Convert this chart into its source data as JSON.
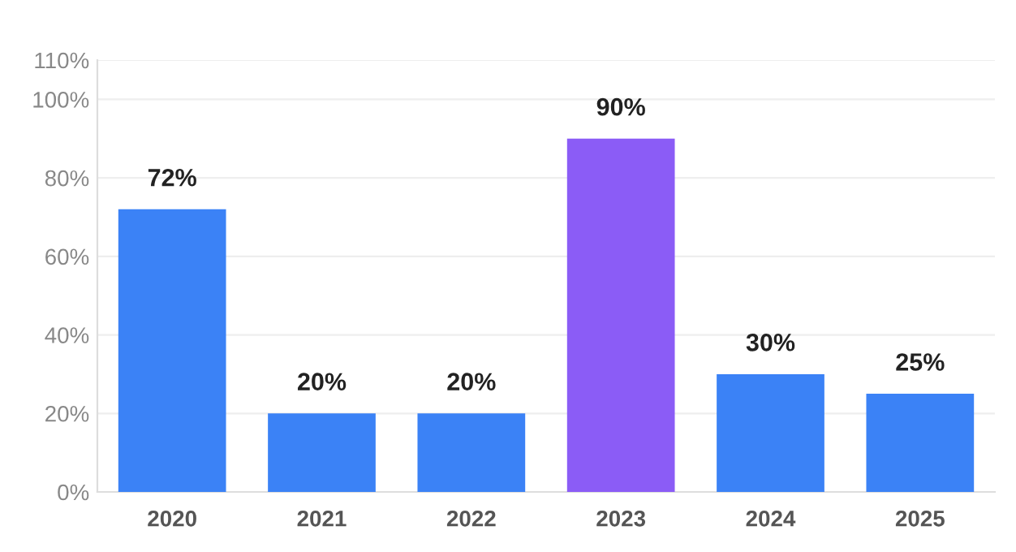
{
  "chart_data": {
    "type": "bar",
    "categories": [
      "2020",
      "2021",
      "2022",
      "2023",
      "2024",
      "2025"
    ],
    "values": [
      72,
      20,
      20,
      90,
      30,
      25
    ],
    "colors": [
      "#3b82f6",
      "#3b82f6",
      "#3b82f6",
      "#8b5cf6",
      "#3b82f6",
      "#3b82f6"
    ],
    "value_labels": [
      "72%",
      "20%",
      "20%",
      "90%",
      "30%",
      "25%"
    ],
    "ylim": [
      0,
      110
    ],
    "yticks": [
      {
        "value": 0,
        "label": "0%"
      },
      {
        "value": 20,
        "label": "20%"
      },
      {
        "value": 40,
        "label": "40%"
      },
      {
        "value": 60,
        "label": "60%"
      },
      {
        "value": 80,
        "label": "80%"
      },
      {
        "value": 100,
        "label": "100%"
      },
      {
        "value": 110,
        "label": "110%"
      }
    ],
    "grid": "y"
  }
}
